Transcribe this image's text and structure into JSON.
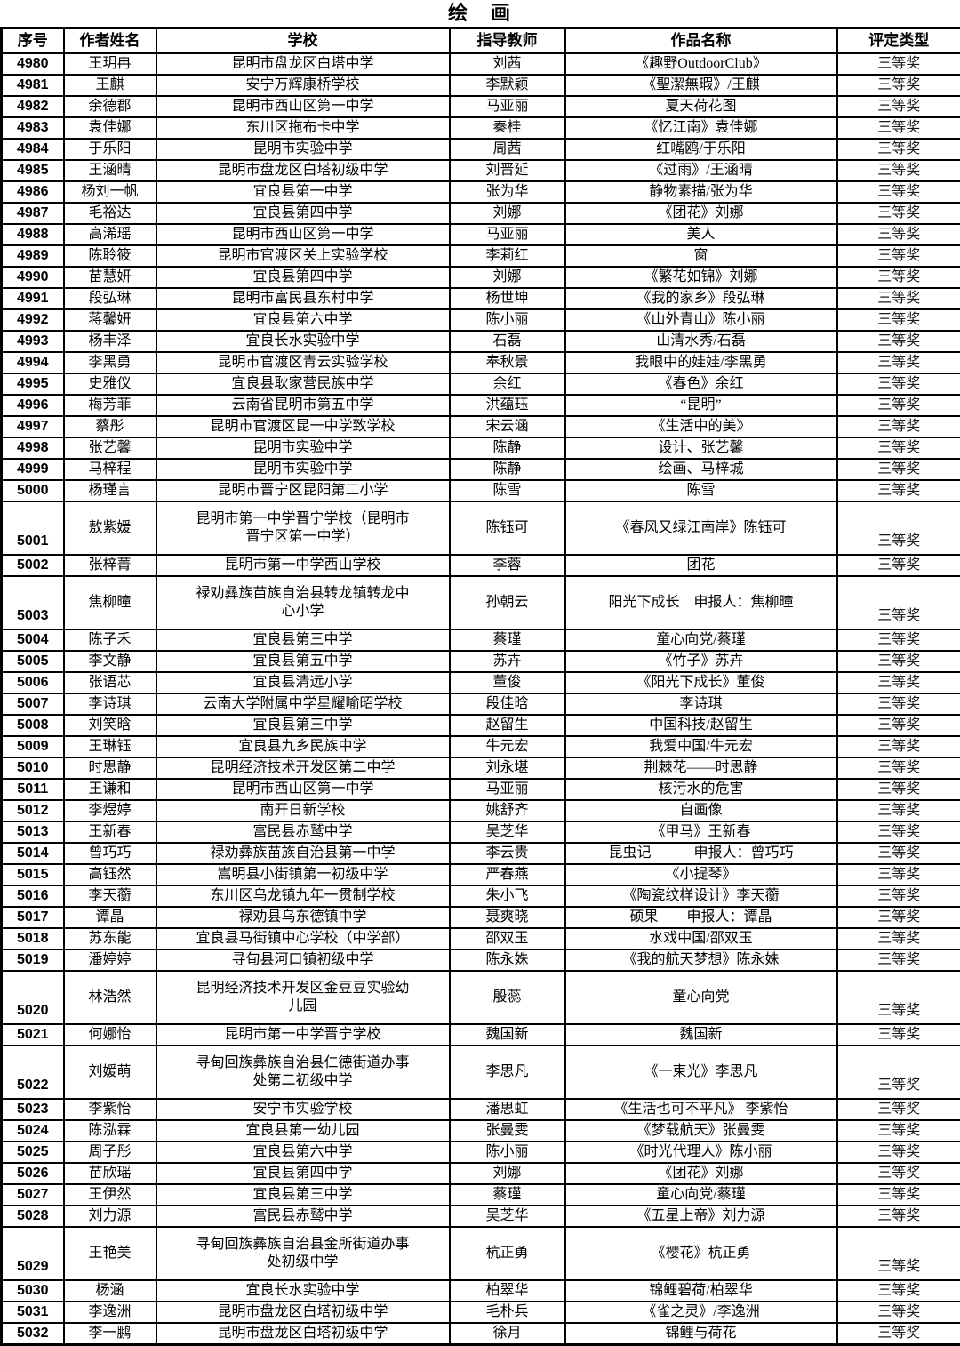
{
  "title": "绘　画",
  "columns": [
    {
      "key": "seq",
      "label": "序号"
    },
    {
      "key": "author",
      "label": "作者姓名"
    },
    {
      "key": "school",
      "label": "学校"
    },
    {
      "key": "teacher",
      "label": "指导教师"
    },
    {
      "key": "work",
      "label": "作品名称"
    },
    {
      "key": "award",
      "label": "评定类型"
    }
  ],
  "rows": [
    {
      "seq": "4980",
      "author": "王玥冉",
      "school": "昆明市盘龙区白塔中学",
      "teacher": "刘茜",
      "work": "《趣野OutdoorClub》",
      "award": "三等奖",
      "tall": false
    },
    {
      "seq": "4981",
      "author": "王麒",
      "school": "安宁万辉康桥学校",
      "teacher": "李默颖",
      "work": "《聖潔無瑕》/王麒",
      "award": "三等奖",
      "tall": false
    },
    {
      "seq": "4982",
      "author": "余德郡",
      "school": "昆明市西山区第一中学",
      "teacher": "马亚丽",
      "work": "夏天荷花图",
      "award": "三等奖",
      "tall": false
    },
    {
      "seq": "4983",
      "author": "袁佳娜",
      "school": "东川区拖布卡中学",
      "teacher": "秦桂",
      "work": "《忆江南》袁佳娜",
      "award": "三等奖",
      "tall": false
    },
    {
      "seq": "4984",
      "author": "于乐阳",
      "school": "昆明市实验中学",
      "teacher": "周茜",
      "work": "红嘴鸥/于乐阳",
      "award": "三等奖",
      "tall": false
    },
    {
      "seq": "4985",
      "author": "王涵晴",
      "school": "昆明市盘龙区白塔初级中学",
      "teacher": "刘晋延",
      "work": "《过雨》/王涵晴",
      "award": "三等奖",
      "tall": false
    },
    {
      "seq": "4986",
      "author": "杨刘一帆",
      "school": "宜良县第一中学",
      "teacher": "张为华",
      "work": "静物素描/张为华",
      "award": "三等奖",
      "tall": false
    },
    {
      "seq": "4987",
      "author": "毛裕达",
      "school": "宜良县第四中学",
      "teacher": "刘娜",
      "work": "《团花》刘娜",
      "award": "三等奖",
      "tall": false
    },
    {
      "seq": "4988",
      "author": "高浠瑶",
      "school": "昆明市西山区第一中学",
      "teacher": "马亚丽",
      "work": "美人",
      "award": "三等奖",
      "tall": false
    },
    {
      "seq": "4989",
      "author": "陈聆筱",
      "school": "昆明市官渡区关上实验学校",
      "teacher": "李莉红",
      "work": "窗",
      "award": "三等奖",
      "tall": false
    },
    {
      "seq": "4990",
      "author": "苗慧妍",
      "school": "宜良县第四中学",
      "teacher": "刘娜",
      "work": "《繁花如锦》刘娜",
      "award": "三等奖",
      "tall": false
    },
    {
      "seq": "4991",
      "author": "段弘琳",
      "school": "昆明市富民县东村中学",
      "teacher": "杨世坤",
      "work": "《我的家乡》段弘琳",
      "award": "三等奖",
      "tall": false
    },
    {
      "seq": "4992",
      "author": "蒋馨妍",
      "school": "宜良县第六中学",
      "teacher": "陈小丽",
      "work": "《山外青山》陈小丽",
      "award": "三等奖",
      "tall": false
    },
    {
      "seq": "4993",
      "author": "杨丰泽",
      "school": "宜良长水实验中学",
      "teacher": "石磊",
      "work": "山清水秀/石磊",
      "award": "三等奖",
      "tall": false
    },
    {
      "seq": "4994",
      "author": "李黑勇",
      "school": "昆明市官渡区青云实验学校",
      "teacher": "奉秋景",
      "work": "我眼中的娃娃/李黑勇",
      "award": "三等奖",
      "tall": false
    },
    {
      "seq": "4995",
      "author": "史雅仪",
      "school": "宜良县耿家营民族中学",
      "teacher": "余红",
      "work": "《春色》余红",
      "award": "三等奖",
      "tall": false
    },
    {
      "seq": "4996",
      "author": "梅芳菲",
      "school": "云南省昆明市第五中学",
      "teacher": "洪蕴珏",
      "work": "“昆明”",
      "award": "三等奖",
      "tall": false
    },
    {
      "seq": "4997",
      "author": "蔡彤",
      "school": "昆明市官渡区昆一中学致学校",
      "teacher": "宋云涵",
      "work": "《生活中的美》",
      "award": "三等奖",
      "tall": false
    },
    {
      "seq": "4998",
      "author": "张艺馨",
      "school": "昆明市实验中学",
      "teacher": "陈静",
      "work": "设计、张艺馨",
      "award": "三等奖",
      "tall": false
    },
    {
      "seq": "4999",
      "author": "马梓程",
      "school": "昆明市实验中学",
      "teacher": "陈静",
      "work": "绘画、马梓城",
      "award": "三等奖",
      "tall": false
    },
    {
      "seq": "5000",
      "author": "杨瑾言",
      "school": "昆明市晋宁区昆阳第二小学",
      "teacher": "陈雪",
      "work": "陈雪",
      "award": "三等奖",
      "tall": false
    },
    {
      "seq": "5001",
      "author": "敖紫媛",
      "school": "昆明市第一中学晋宁学校（昆明市\n晋宁区第一中学）",
      "teacher": "陈钰可",
      "work": "《春风又绿江南岸》陈钰可",
      "award": "三等奖",
      "tall": true
    },
    {
      "seq": "5002",
      "author": "张梓菁",
      "school": "昆明市第一中学西山学校",
      "teacher": "李蓉",
      "work": "团花",
      "award": "三等奖",
      "tall": false
    },
    {
      "seq": "5003",
      "author": "焦柳曈",
      "school": "禄劝彝族苗族自治县转龙镇转龙中\n心小学",
      "teacher": "孙朝云",
      "work": "阳光下成长　申报人：焦柳曈",
      "award": "三等奖",
      "tall": true
    },
    {
      "seq": "5004",
      "author": "陈子禾",
      "school": "宜良县第三中学",
      "teacher": "蔡瑾",
      "work": "童心向党/蔡瑾",
      "award": "三等奖",
      "tall": false
    },
    {
      "seq": "5005",
      "author": "李文静",
      "school": "宜良县第五中学",
      "teacher": "苏卉",
      "work": "《竹子》苏卉",
      "award": "三等奖",
      "tall": false
    },
    {
      "seq": "5006",
      "author": "张语芯",
      "school": "宜良县清远小学",
      "teacher": "董俊",
      "work": "《阳光下成长》董俊",
      "award": "三等奖",
      "tall": false
    },
    {
      "seq": "5007",
      "author": "李诗琪",
      "school": "云南大学附属中学星耀喻昭学校",
      "teacher": "段佳晗",
      "work": "李诗琪",
      "award": "三等奖",
      "tall": false
    },
    {
      "seq": "5008",
      "author": "刘笑晗",
      "school": "宜良县第三中学",
      "teacher": "赵留生",
      "work": "中国科技/赵留生",
      "award": "三等奖",
      "tall": false
    },
    {
      "seq": "5009",
      "author": "王琳钰",
      "school": "宜良县九乡民族中学",
      "teacher": "牛元宏",
      "work": "我爱中国/牛元宏",
      "award": "三等奖",
      "tall": false
    },
    {
      "seq": "5010",
      "author": "时思静",
      "school": "昆明经济技术开发区第二中学",
      "teacher": "刘永堪",
      "work": "荆棘花——时思静",
      "award": "三等奖",
      "tall": false
    },
    {
      "seq": "5011",
      "author": "王谦和",
      "school": "昆明市西山区第一中学",
      "teacher": "马亚丽",
      "work": "核污水的危害",
      "award": "三等奖",
      "tall": false
    },
    {
      "seq": "5012",
      "author": "李煜婷",
      "school": "南开日新学校",
      "teacher": "姚舒齐",
      "work": "自画像",
      "award": "三等奖",
      "tall": false
    },
    {
      "seq": "5013",
      "author": "王新春",
      "school": "富民县赤鹫中学",
      "teacher": "吴芝华",
      "work": "《甲马》王新春",
      "award": "三等奖",
      "tall": false
    },
    {
      "seq": "5014",
      "author": "曾巧巧",
      "school": "禄劝彝族苗族自治县第一中学",
      "teacher": "李云贵",
      "work": "昆虫记　　　申报人：曾巧巧",
      "award": "三等奖",
      "tall": false
    },
    {
      "seq": "5015",
      "author": "高钰然",
      "school": "嵩明县小街镇第一初级中学",
      "teacher": "严春燕",
      "work": "《小提琴》",
      "award": "三等奖",
      "tall": false
    },
    {
      "seq": "5016",
      "author": "李天蘅",
      "school": "东川区乌龙镇九年一贯制学校",
      "teacher": "朱小飞",
      "work": "《陶瓷纹样设计》李天蘅",
      "award": "三等奖",
      "tall": false
    },
    {
      "seq": "5017",
      "author": "谭晶",
      "school": "禄劝县乌东德镇中学",
      "teacher": "聂爽晓",
      "work": "硕果　　申报人：谭晶",
      "award": "三等奖",
      "tall": false
    },
    {
      "seq": "5018",
      "author": "苏东能",
      "school": "宜良县马街镇中心学校（中学部）",
      "teacher": "邵双玉",
      "work": "水戏中国/邵双玉",
      "award": "三等奖",
      "tall": false
    },
    {
      "seq": "5019",
      "author": "潘婷婷",
      "school": "寻甸县河口镇初级中学",
      "teacher": "陈永姝",
      "work": "《我的航天梦想》陈永姝",
      "award": "三等奖",
      "tall": false
    },
    {
      "seq": "5020",
      "author": "林浩然",
      "school": "昆明经济技术开发区金豆豆实验幼\n儿园",
      "teacher": "殷蕊",
      "work": "童心向党",
      "award": "三等奖",
      "tall": true
    },
    {
      "seq": "5021",
      "author": "何娜怡",
      "school": "昆明市第一中学晋宁学校",
      "teacher": "魏国新",
      "work": "魏国新",
      "award": "三等奖",
      "tall": false
    },
    {
      "seq": "5022",
      "author": "刘媛萌",
      "school": "寻甸回族彝族自治县仁德街道办事\n处第二初级中学",
      "teacher": "李思凡",
      "work": "《一束光》李思凡",
      "award": "三等奖",
      "tall": true
    },
    {
      "seq": "5023",
      "author": "李紫怡",
      "school": "安宁市实验学校",
      "teacher": "潘思虹",
      "work": "《生活也可不平凡》 李紫怡",
      "award": "三等奖",
      "tall": false
    },
    {
      "seq": "5024",
      "author": "陈泓霖",
      "school": "宜良县第一幼儿园",
      "teacher": "张曼雯",
      "work": "《梦载航天》张曼雯",
      "award": "三等奖",
      "tall": false
    },
    {
      "seq": "5025",
      "author": "周子彤",
      "school": "宜良县第六中学",
      "teacher": "陈小丽",
      "work": "《时光代理人》陈小丽",
      "award": "三等奖",
      "tall": false
    },
    {
      "seq": "5026",
      "author": "苗欣瑶",
      "school": "宜良县第四中学",
      "teacher": "刘娜",
      "work": "《团花》刘娜",
      "award": "三等奖",
      "tall": false
    },
    {
      "seq": "5027",
      "author": "王伊然",
      "school": "宜良县第三中学",
      "teacher": "蔡瑾",
      "work": "童心向党/蔡瑾",
      "award": "三等奖",
      "tall": false
    },
    {
      "seq": "5028",
      "author": "刘力源",
      "school": "富民县赤鹫中学",
      "teacher": "吴芝华",
      "work": "《五星上帝》刘力源",
      "award": "三等奖",
      "tall": false
    },
    {
      "seq": "5029",
      "author": "王艳美",
      "school": "寻甸回族彝族自治县金所街道办事\n处初级中学",
      "teacher": "杭正勇",
      "work": "《樱花》杭正勇",
      "award": "三等奖",
      "tall": true
    },
    {
      "seq": "5030",
      "author": "杨涵",
      "school": "宜良长水实验中学",
      "teacher": "柏翠华",
      "work": "锦鲤碧荷/柏翠华",
      "award": "三等奖",
      "tall": false
    },
    {
      "seq": "5031",
      "author": "李逸洲",
      "school": "昆明市盘龙区白塔初级中学",
      "teacher": "毛朴兵",
      "work": "《雀之灵》/李逸洲",
      "award": "三等奖",
      "tall": false
    },
    {
      "seq": "5032",
      "author": "李一鹏",
      "school": "昆明市盘龙区白塔初级中学",
      "teacher": "徐月",
      "work": "锦鲤与荷花",
      "award": "三等奖",
      "tall": false
    }
  ]
}
